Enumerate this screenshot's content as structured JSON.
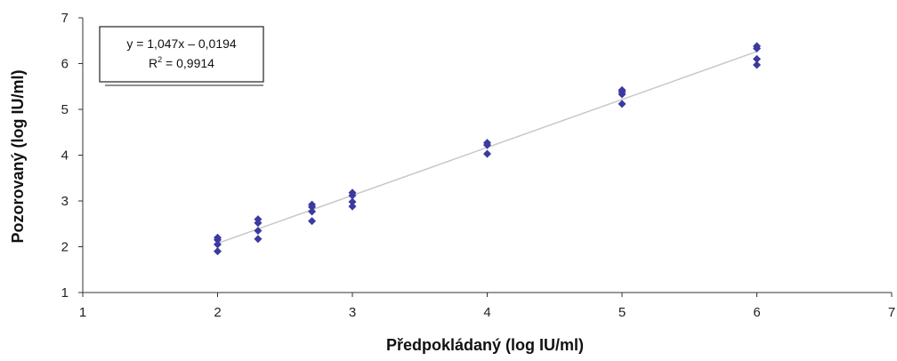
{
  "chart_data": {
    "type": "scatter",
    "title": "",
    "xlabel": "Předpokládaný (log IU/ml)",
    "ylabel": "Pozorovaný (log IU/ml)",
    "xlim": [
      1,
      7
    ],
    "ylim": [
      1,
      7
    ],
    "x_ticks": [
      "1",
      "2",
      "3",
      "4",
      "5",
      "6",
      "7"
    ],
    "y_ticks": [
      "1",
      "2",
      "3",
      "4",
      "5",
      "6",
      "7"
    ],
    "grid": false,
    "legend": "none",
    "marker_color": "#3a3aa0",
    "trendline_color": "#c8c8c8",
    "points": [
      {
        "x": 2,
        "y": 2.2
      },
      {
        "x": 2,
        "y": 2.15
      },
      {
        "x": 2,
        "y": 2.05
      },
      {
        "x": 2,
        "y": 1.9
      },
      {
        "x": 2.3,
        "y": 2.6
      },
      {
        "x": 2.3,
        "y": 2.52
      },
      {
        "x": 2.3,
        "y": 2.35
      },
      {
        "x": 2.3,
        "y": 2.17
      },
      {
        "x": 2.7,
        "y": 2.92
      },
      {
        "x": 2.7,
        "y": 2.87
      },
      {
        "x": 2.7,
        "y": 2.77
      },
      {
        "x": 2.7,
        "y": 2.56
      },
      {
        "x": 3,
        "y": 3.18
      },
      {
        "x": 3,
        "y": 3.12
      },
      {
        "x": 3,
        "y": 2.98
      },
      {
        "x": 3,
        "y": 2.88
      },
      {
        "x": 4,
        "y": 4.27
      },
      {
        "x": 4,
        "y": 4.22
      },
      {
        "x": 4,
        "y": 4.03
      },
      {
        "x": 5,
        "y": 5.42
      },
      {
        "x": 5,
        "y": 5.38
      },
      {
        "x": 5,
        "y": 5.33
      },
      {
        "x": 5,
        "y": 5.12
      },
      {
        "x": 6,
        "y": 6.38
      },
      {
        "x": 6,
        "y": 6.33
      },
      {
        "x": 6,
        "y": 6.1
      },
      {
        "x": 6,
        "y": 5.97
      }
    ],
    "trendline": {
      "slope": 1.047,
      "intercept": -0.0194,
      "x_range": [
        2,
        6
      ],
      "equation": "y = 1,047x – 0,0194",
      "r2_prefix": "R",
      "r2_exponent": "2",
      "r2_value": " = 0,9914"
    }
  }
}
